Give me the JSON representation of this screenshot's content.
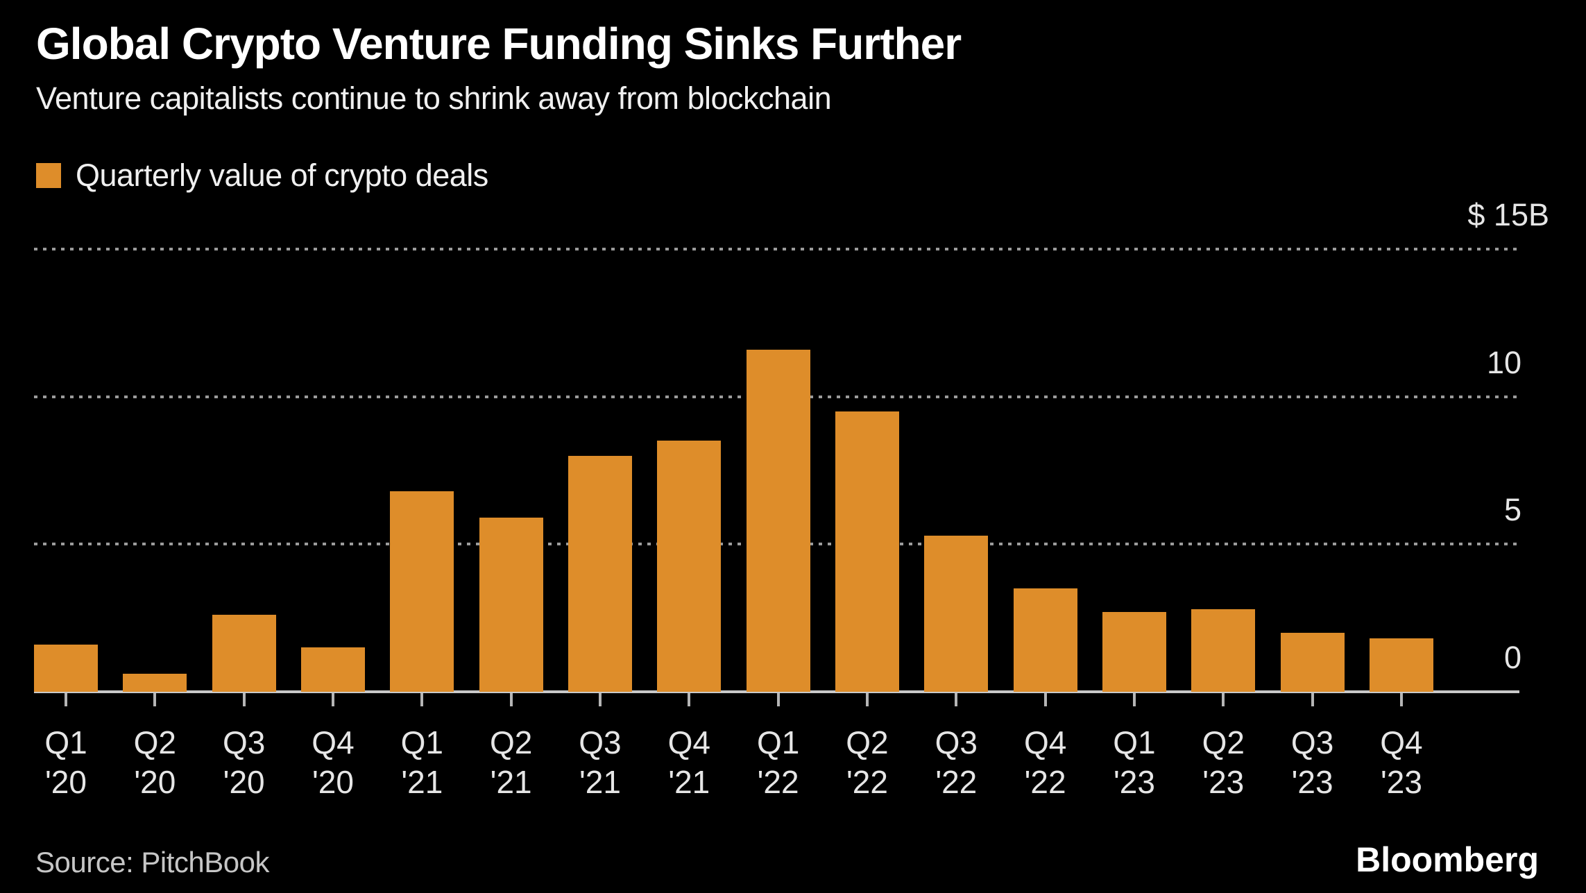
{
  "chart_data": {
    "type": "bar",
    "title": "Global Crypto Venture Funding Sinks Further",
    "subtitle": "Venture capitalists continue to shrink away from blockchain",
    "legend": "Quarterly value of crypto deals",
    "source": "Source: PitchBook",
    "brand": "Bloomberg",
    "categories": [
      "Q1 '20",
      "Q2 '20",
      "Q3 '20",
      "Q4 '20",
      "Q1 '21",
      "Q2 '21",
      "Q3 '21",
      "Q4 '21",
      "Q1 '22",
      "Q2 '22",
      "Q3 '22",
      "Q4 '22",
      "Q1 '23",
      "Q2 '23",
      "Q3 '23",
      "Q4 '23"
    ],
    "category_lines": [
      {
        "q": "Q1",
        "y": "'20"
      },
      {
        "q": "Q2",
        "y": "'20"
      },
      {
        "q": "Q3",
        "y": "'20"
      },
      {
        "q": "Q4",
        "y": "'20"
      },
      {
        "q": "Q1",
        "y": "'21"
      },
      {
        "q": "Q2",
        "y": "'21"
      },
      {
        "q": "Q3",
        "y": "'21"
      },
      {
        "q": "Q4",
        "y": "'21"
      },
      {
        "q": "Q1",
        "y": "'22"
      },
      {
        "q": "Q2",
        "y": "'22"
      },
      {
        "q": "Q3",
        "y": "'22"
      },
      {
        "q": "Q4",
        "y": "'22"
      },
      {
        "q": "Q1",
        "y": "'23"
      },
      {
        "q": "Q2",
        "y": "'23"
      },
      {
        "q": "Q3",
        "y": "'23"
      },
      {
        "q": "Q4",
        "y": "'23"
      }
    ],
    "values": [
      1.6,
      0.6,
      2.6,
      1.5,
      6.8,
      5.9,
      8.0,
      8.5,
      11.6,
      9.5,
      5.3,
      3.5,
      2.7,
      2.8,
      2.0,
      1.8
    ],
    "unit": "$B",
    "ylim": [
      0,
      15
    ],
    "y_ticks": [
      {
        "text": "$ 15B",
        "value": 15,
        "is_unit_label": true
      },
      {
        "text": "10",
        "value": 10,
        "is_unit_label": false
      },
      {
        "text": "5",
        "value": 5,
        "is_unit_label": false
      },
      {
        "text": "0",
        "value": 0,
        "is_unit_label": false
      }
    ],
    "gridline_values": [
      15,
      10,
      5
    ],
    "grid_style": "dotted",
    "legend_position": "top-left",
    "colors": {
      "bar": "#DE8D2A",
      "background": "#000000",
      "gridline": "#9b9b9b",
      "axis_line": "#c9c9c9",
      "title_text": "#ffffff",
      "label_text": "#e6e6e6"
    }
  }
}
